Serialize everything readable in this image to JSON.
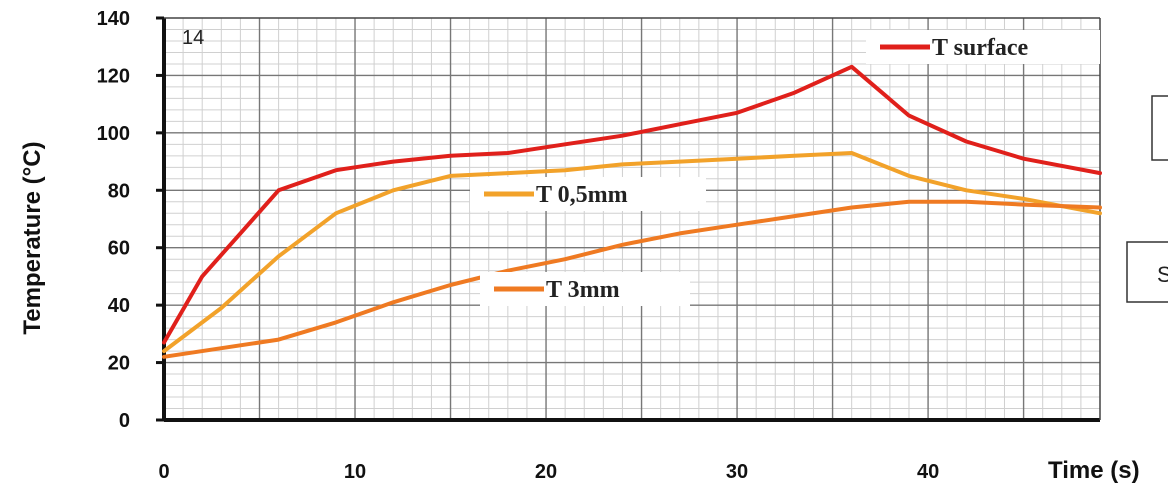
{
  "chart_data": {
    "type": "line",
    "title": "",
    "xlabel": "Time (s)",
    "ylabel": "Temperature (°C)",
    "xlim": [
      0,
      49
    ],
    "ylim": [
      0,
      140
    ],
    "x_ticks": [
      0,
      10,
      20,
      30,
      40
    ],
    "y_ticks": [
      0,
      20,
      40,
      60,
      80,
      100,
      120,
      140
    ],
    "grid": true,
    "corner_label": "14",
    "side_fragment": "S",
    "series": [
      {
        "name": "T surface",
        "color": "#e0201b",
        "x": [
          0,
          2,
          4,
          6,
          9,
          12,
          15,
          18,
          21,
          24,
          27,
          30,
          33,
          36,
          39,
          42,
          45,
          49
        ],
        "y": [
          27,
          50,
          65,
          80,
          87,
          90,
          92,
          93,
          96,
          99,
          103,
          107,
          114,
          123,
          106,
          97,
          91,
          86
        ]
      },
      {
        "name": "T 0,5mm",
        "color": "#f2a22a",
        "x": [
          0,
          3,
          6,
          9,
          12,
          15,
          18,
          21,
          24,
          27,
          30,
          33,
          36,
          39,
          42,
          45,
          49
        ],
        "y": [
          24,
          39,
          57,
          72,
          80,
          85,
          86,
          87,
          89,
          90,
          91,
          92,
          93,
          85,
          80,
          77,
          72
        ]
      },
      {
        "name": "T 3mm",
        "color": "#ef7a22",
        "x": [
          0,
          3,
          6,
          9,
          12,
          15,
          18,
          21,
          24,
          27,
          30,
          33,
          36,
          39,
          42,
          45,
          49
        ],
        "y": [
          22,
          25,
          28,
          34,
          41,
          47,
          52,
          56,
          61,
          65,
          68,
          71,
          74,
          76,
          76,
          75,
          74
        ]
      }
    ],
    "legend": [
      {
        "series": 0,
        "position": "top-right"
      },
      {
        "series": 1,
        "position": "middle-center"
      },
      {
        "series": 2,
        "position": "lower-center"
      }
    ]
  }
}
